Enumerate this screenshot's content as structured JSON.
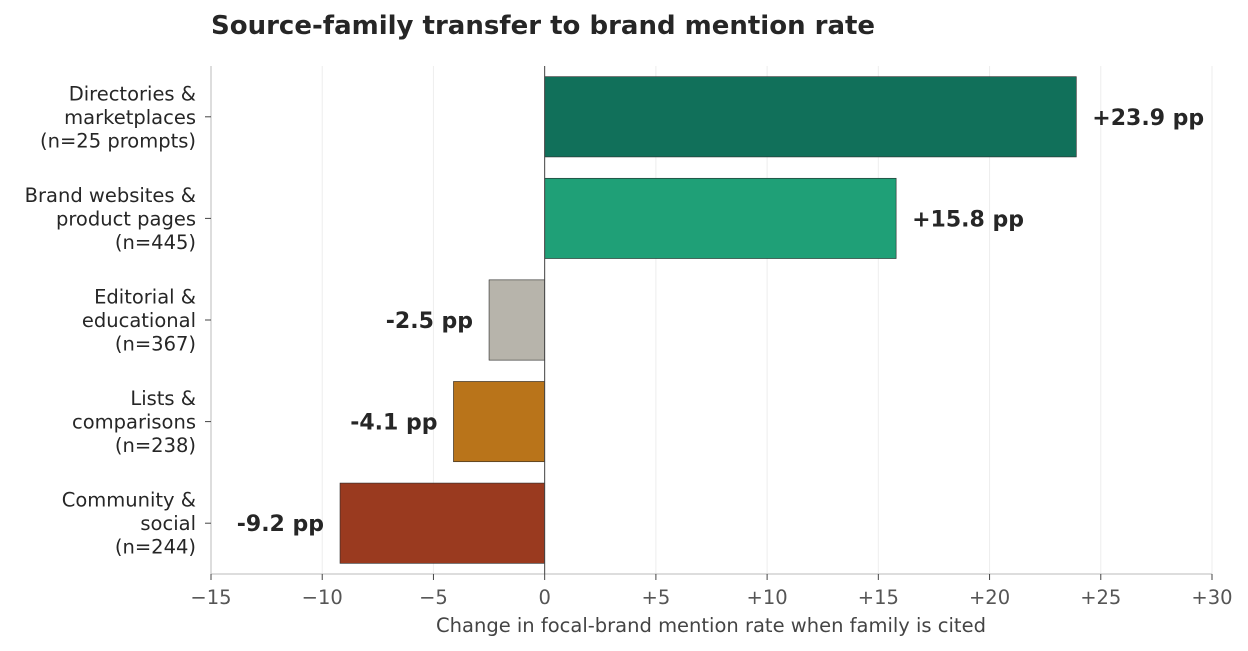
{
  "chart_data": {
    "type": "bar",
    "orientation": "horizontal",
    "title": "Source-family transfer to brand mention rate",
    "xlabel": "Change in focal-brand mention rate when family is cited",
    "ylabel": "",
    "xlim": [
      -15,
      30
    ],
    "xticks": [
      -15,
      -10,
      -5,
      0,
      5,
      10,
      15,
      20,
      25,
      30
    ],
    "xtick_labels": [
      "−15",
      "−10",
      "−5",
      "0",
      "+5",
      "+10",
      "+15",
      "+20",
      "+25",
      "+30"
    ],
    "grid": "vertical",
    "categories": [
      [
        "Directories &",
        "marketplaces",
        "(n=25 prompts)"
      ],
      [
        "Brand websites &",
        "product pages",
        "(n=445)"
      ],
      [
        "Editorial &",
        "educational",
        "(n=367)"
      ],
      [
        "Lists &",
        "comparisons",
        "(n=238)"
      ],
      [
        "Community &",
        "social",
        "(n=244)"
      ]
    ],
    "values": [
      23.9,
      15.8,
      -2.5,
      -4.1,
      -9.2
    ],
    "data_labels": [
      "+23.9 pp",
      "+15.8 pp",
      "-2.5 pp",
      "-4.1 pp",
      "-9.2 pp"
    ],
    "colors": [
      "#11705a",
      "#1fa077",
      "#b7b4ab",
      "#b9741a",
      "#9a3a1f"
    ]
  }
}
